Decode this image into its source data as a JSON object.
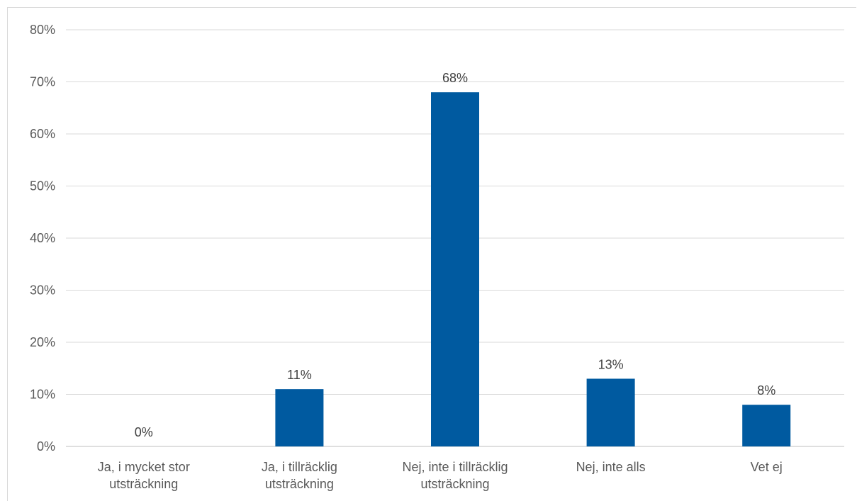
{
  "chart_data": {
    "type": "bar",
    "title": "",
    "xlabel": "",
    "ylabel": "",
    "categories": [
      [
        "Ja, i mycket stor",
        "utsträckning"
      ],
      [
        "Ja, i tillräcklig",
        "utsträckning"
      ],
      [
        "Nej, inte i tillräcklig",
        "utsträckning"
      ],
      [
        "Nej, inte alls"
      ],
      [
        "Vet ej"
      ]
    ],
    "values": [
      0,
      11,
      68,
      13,
      8
    ],
    "data_labels": [
      "0%",
      "11%",
      "68%",
      "13%",
      "8%"
    ],
    "ylim": [
      0,
      80
    ],
    "yticks": [
      "0%",
      "10%",
      "20%",
      "30%",
      "40%",
      "50%",
      "60%",
      "70%",
      "80%"
    ],
    "grid": true,
    "legend": "none",
    "colors": {
      "bar": "#005aa0",
      "grid": "#d9d9d9",
      "text": "#595959"
    }
  }
}
